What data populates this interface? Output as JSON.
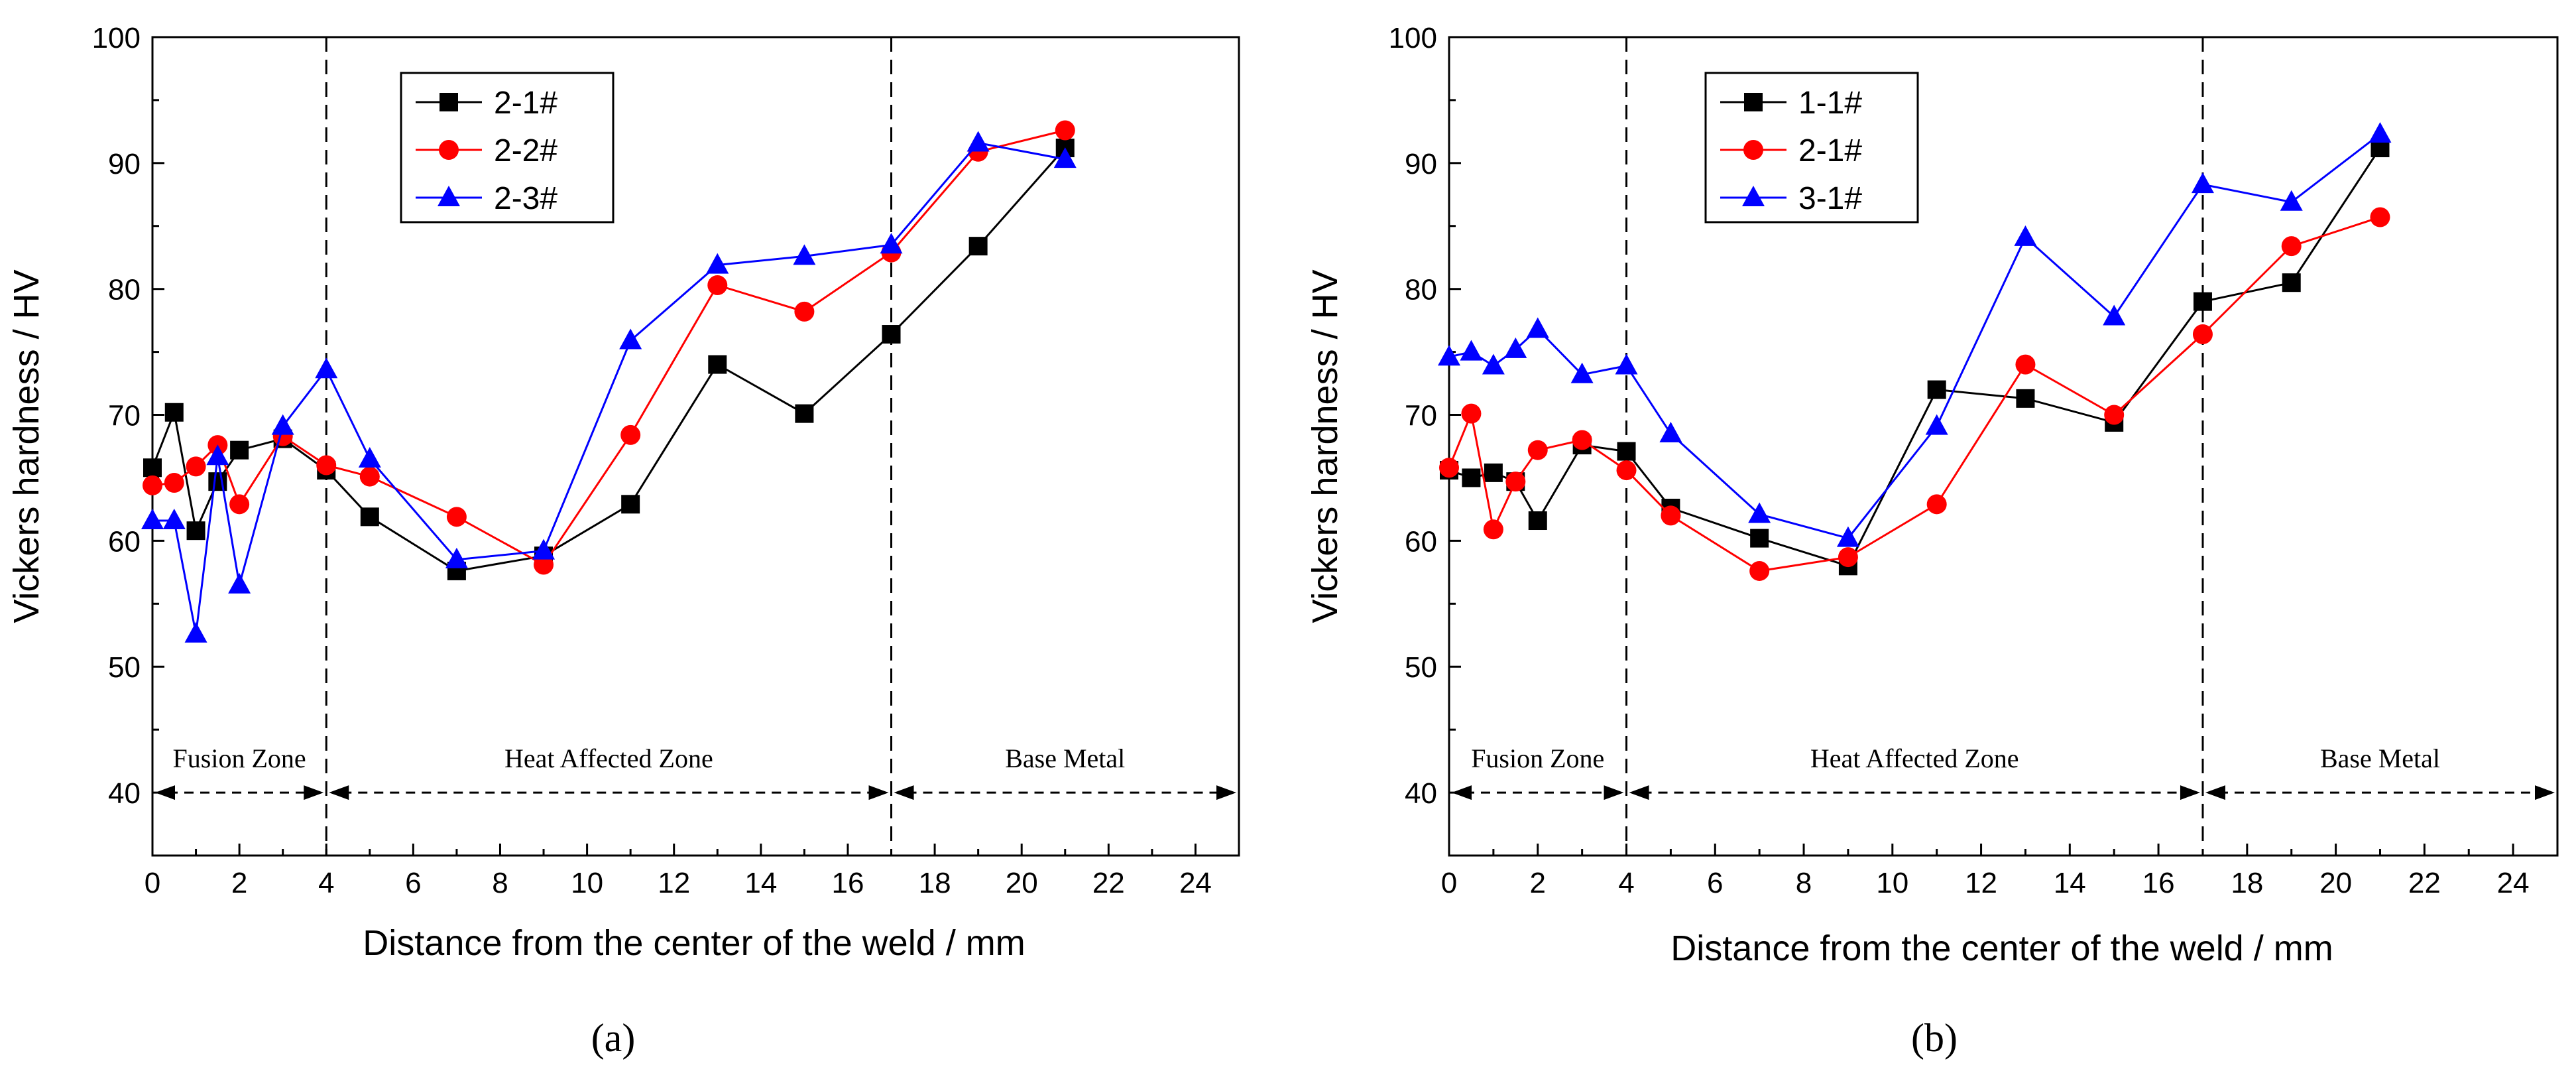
{
  "chart_data": [
    {
      "type": "line",
      "panel_label": "(a)",
      "xlabel": "Distance from the center of the weld / mm",
      "ylabel": "Vickers hardness / HV",
      "xlim": [
        0,
        25
      ],
      "ylim": [
        35,
        100
      ],
      "xticks": [
        0,
        2,
        4,
        6,
        8,
        10,
        12,
        14,
        16,
        18,
        20,
        22,
        24
      ],
      "yticks": [
        40,
        50,
        60,
        70,
        80,
        90,
        100
      ],
      "grid": false,
      "legend_position": "top-left",
      "zone_boundaries": [
        4,
        17
      ],
      "zones": [
        {
          "label": "Fusion Zone",
          "from": 0,
          "to": 4
        },
        {
          "label": "Heat Affected Zone",
          "from": 4,
          "to": 17
        },
        {
          "label": "Base Metal",
          "from": 17,
          "to": 25
        }
      ],
      "series": [
        {
          "name": "2-1#",
          "color": "#000000",
          "marker": "square",
          "x": [
            0,
            0.5,
            1,
            1.5,
            2,
            3,
            4,
            5,
            7,
            9,
            11,
            13,
            15,
            17,
            19,
            21
          ],
          "y": [
            65.8,
            70.2,
            60.8,
            64.7,
            67.2,
            68.1,
            65.6,
            61.9,
            57.6,
            58.8,
            62.9,
            74.0,
            70.1,
            76.4,
            83.4,
            91.2
          ]
        },
        {
          "name": "2-2#",
          "color": "#ff0000",
          "marker": "circle",
          "x": [
            0,
            0.5,
            1,
            1.5,
            2,
            3,
            4,
            5,
            7,
            9,
            11,
            13,
            15,
            17,
            19,
            21
          ],
          "y": [
            64.4,
            64.6,
            65.9,
            67.6,
            62.9,
            68.3,
            66.0,
            65.1,
            61.9,
            58.1,
            68.4,
            80.3,
            78.2,
            82.9,
            90.9,
            92.6
          ]
        },
        {
          "name": "2-3#",
          "color": "#0000ff",
          "marker": "triangle",
          "x": [
            0,
            0.5,
            1,
            1.5,
            2,
            3,
            4,
            5,
            7,
            9,
            11,
            13,
            15,
            17,
            19,
            21
          ],
          "y": [
            61.6,
            61.6,
            52.6,
            66.7,
            56.5,
            69.1,
            73.6,
            66.5,
            58.5,
            59.2,
            75.9,
            81.9,
            82.6,
            83.5,
            91.6,
            90.3
          ]
        }
      ]
    },
    {
      "type": "line",
      "panel_label": "(b)",
      "xlabel": "Distance from the center of the weld / mm",
      "ylabel": "Vickers hardness / HV",
      "xlim": [
        0,
        25
      ],
      "ylim": [
        35,
        100
      ],
      "xticks": [
        0,
        2,
        4,
        6,
        8,
        10,
        12,
        14,
        16,
        18,
        20,
        22,
        24
      ],
      "yticks": [
        40,
        50,
        60,
        70,
        80,
        90,
        100
      ],
      "grid": false,
      "legend_position": "top-left",
      "zone_boundaries": [
        4,
        17
      ],
      "zones": [
        {
          "label": "Fusion Zone",
          "from": 0,
          "to": 4
        },
        {
          "label": "Heat Affected Zone",
          "from": 4,
          "to": 17
        },
        {
          "label": "Base Metal",
          "from": 17,
          "to": 25
        }
      ],
      "series": [
        {
          "name": "1-1#",
          "color": "#000000",
          "marker": "square",
          "x": [
            0,
            0.5,
            1,
            1.5,
            2,
            3,
            4,
            5,
            7,
            9,
            11,
            13,
            15,
            17,
            19,
            21
          ],
          "y": [
            65.6,
            65.0,
            65.4,
            64.7,
            61.6,
            67.6,
            67.1,
            62.6,
            60.2,
            58.0,
            72.0,
            71.3,
            69.4,
            79.0,
            80.5,
            91.2
          ]
        },
        {
          "name": "2-1#",
          "color": "#ff0000",
          "marker": "circle",
          "x": [
            0,
            0.5,
            1,
            1.5,
            2,
            3,
            4,
            5,
            7,
            9,
            11,
            13,
            15,
            17,
            19,
            21
          ],
          "y": [
            65.8,
            70.1,
            60.9,
            64.7,
            67.2,
            68.0,
            65.6,
            62.0,
            57.6,
            58.7,
            62.9,
            74.0,
            70.0,
            76.4,
            83.4,
            85.7
          ]
        },
        {
          "name": "3-1#",
          "color": "#0000ff",
          "marker": "triangle",
          "x": [
            0,
            0.5,
            1,
            1.5,
            2,
            3,
            4,
            5,
            7,
            9,
            11,
            13,
            15,
            17,
            19,
            21
          ],
          "y": [
            74.6,
            75.0,
            73.9,
            75.2,
            76.8,
            73.2,
            73.9,
            68.5,
            62.1,
            60.2,
            69.1,
            84.1,
            77.8,
            88.3,
            86.9,
            92.3
          ]
        }
      ]
    }
  ]
}
